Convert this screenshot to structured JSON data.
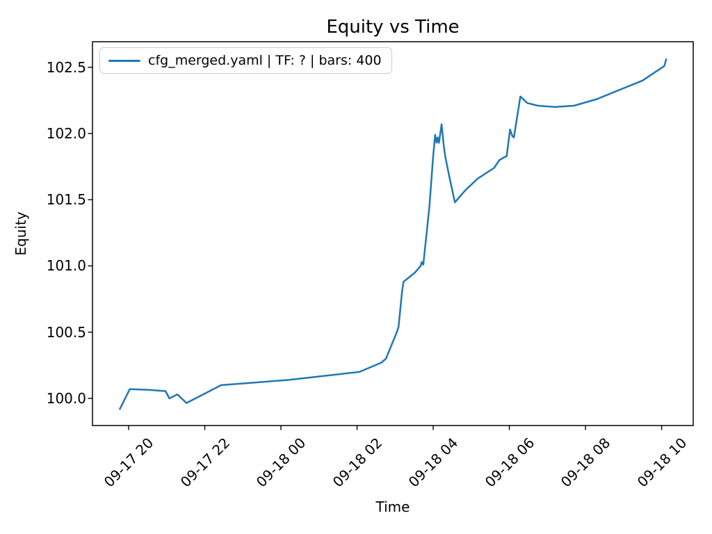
{
  "title": "Equity vs Time",
  "xlabel": "Time",
  "ylabel": "Equity",
  "legend": {
    "label": "cfg_merged.yaml | TF: ? | bars: 400",
    "line_color": "#1f77b4",
    "position": "upper left"
  },
  "chart_data": {
    "type": "line",
    "title": "Equity vs Time",
    "xlabel": "Time",
    "ylabel": "Equity",
    "grid": false,
    "legend_position": "upper left",
    "x_axis": {
      "note": "x values are hours relative to first tick",
      "tick_values": [
        0,
        2,
        4,
        6,
        8,
        10,
        12,
        14
      ],
      "tick_labels": [
        "09-17 20",
        "09-17 22",
        "09-18 00",
        "09-18 02",
        "09-18 04",
        "09-18 06",
        "09-18 08",
        "09-18 10"
      ]
    },
    "y_axis": {
      "tick_values": [
        100.0,
        100.5,
        101.0,
        101.5,
        102.0,
        102.5
      ],
      "tick_labels": [
        "100.0",
        "100.5",
        "101.0",
        "101.5",
        "102.0",
        "102.5"
      ]
    },
    "xlim": [
      -0.95,
      14.83
    ],
    "ylim": [
      99.795,
      102.693
    ],
    "series": [
      {
        "name": "cfg_merged.yaml | TF: ? | bars: 400",
        "color": "#1f77b4",
        "line_width": 2.5,
        "points": [
          [
            -0.23,
            99.92
          ],
          [
            0.03,
            100.07
          ],
          [
            0.5,
            100.065
          ],
          [
            0.97,
            100.055
          ],
          [
            1.07,
            100.0
          ],
          [
            1.28,
            100.03
          ],
          [
            1.52,
            99.965
          ],
          [
            2.43,
            100.1
          ],
          [
            4.23,
            100.14
          ],
          [
            6.06,
            100.2
          ],
          [
            6.64,
            100.27
          ],
          [
            6.76,
            100.3
          ],
          [
            7.03,
            100.49
          ],
          [
            7.09,
            100.54
          ],
          [
            7.18,
            100.8
          ],
          [
            7.22,
            100.88
          ],
          [
            7.52,
            100.95
          ],
          [
            7.67,
            101.0
          ],
          [
            7.7,
            101.03
          ],
          [
            7.74,
            101.01
          ],
          [
            7.9,
            101.45
          ],
          [
            8.0,
            101.83
          ],
          [
            8.05,
            101.99
          ],
          [
            8.09,
            101.93
          ],
          [
            8.12,
            101.97
          ],
          [
            8.15,
            101.93
          ],
          [
            8.22,
            102.07
          ],
          [
            8.28,
            101.9
          ],
          [
            8.32,
            101.82
          ],
          [
            8.42,
            101.68
          ],
          [
            8.57,
            101.48
          ],
          [
            8.84,
            101.57
          ],
          [
            9.17,
            101.66
          ],
          [
            9.6,
            101.74
          ],
          [
            9.74,
            101.8
          ],
          [
            9.93,
            101.83
          ],
          [
            10.02,
            102.03
          ],
          [
            10.08,
            101.98
          ],
          [
            10.12,
            101.97
          ],
          [
            10.29,
            102.28
          ],
          [
            10.47,
            102.23
          ],
          [
            10.75,
            102.21
          ],
          [
            11.2,
            102.2
          ],
          [
            11.7,
            102.21
          ],
          [
            12.3,
            102.26
          ],
          [
            12.9,
            102.33
          ],
          [
            13.5,
            102.4
          ],
          [
            14.07,
            102.51
          ],
          [
            14.12,
            102.56
          ]
        ]
      }
    ]
  }
}
